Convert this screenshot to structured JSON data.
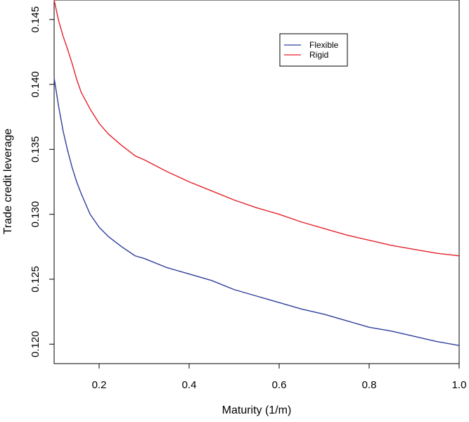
{
  "chart_data": {
    "type": "line",
    "title": "",
    "xlabel": "Maturity (1/m)",
    "ylabel": "Trade credit leverage",
    "xlim": [
      0.1,
      1.0
    ],
    "ylim": [
      0.1185,
      0.1465
    ],
    "x_ticks": [
      0.2,
      0.4,
      0.6,
      0.8,
      1.0
    ],
    "x_tick_labels": [
      "0.2",
      "0.4",
      "0.6",
      "0.8",
      "1.0"
    ],
    "y_ticks": [
      0.12,
      0.125,
      0.13,
      0.135,
      0.14,
      0.145
    ],
    "y_tick_labels": [
      "0.120",
      "0.125",
      "0.130",
      "0.135",
      "0.140",
      "0.145"
    ],
    "grid": false,
    "legend_position": "top-right",
    "x": [
      0.1,
      0.11,
      0.12,
      0.13,
      0.14,
      0.15,
      0.16,
      0.18,
      0.2,
      0.22,
      0.25,
      0.28,
      0.3,
      0.35,
      0.4,
      0.45,
      0.5,
      0.55,
      0.6,
      0.65,
      0.7,
      0.75,
      0.8,
      0.85,
      0.9,
      0.95,
      1.0
    ],
    "series": [
      {
        "name": "Flexible",
        "color": "#2e3e9a",
        "values": [
          0.1405,
          0.1383,
          0.1364,
          0.1349,
          0.1336,
          0.1325,
          0.1316,
          0.13,
          0.129,
          0.1283,
          0.1275,
          0.1268,
          0.1266,
          0.1259,
          0.1254,
          0.1249,
          0.1242,
          0.1237,
          0.1232,
          0.1227,
          0.1223,
          0.1218,
          0.1213,
          0.121,
          0.1206,
          0.1202,
          0.1199
        ]
      },
      {
        "name": "Rigid",
        "color": "#e3222b",
        "values": [
          0.1465,
          0.1449,
          0.1437,
          0.1427,
          0.1416,
          0.1404,
          0.1394,
          0.1381,
          0.137,
          0.1362,
          0.1353,
          0.1345,
          0.1342,
          0.1333,
          0.1325,
          0.1318,
          0.1311,
          0.1305,
          0.13,
          0.1294,
          0.1289,
          0.1284,
          0.128,
          0.1276,
          0.1273,
          0.127,
          0.1268
        ]
      }
    ]
  }
}
